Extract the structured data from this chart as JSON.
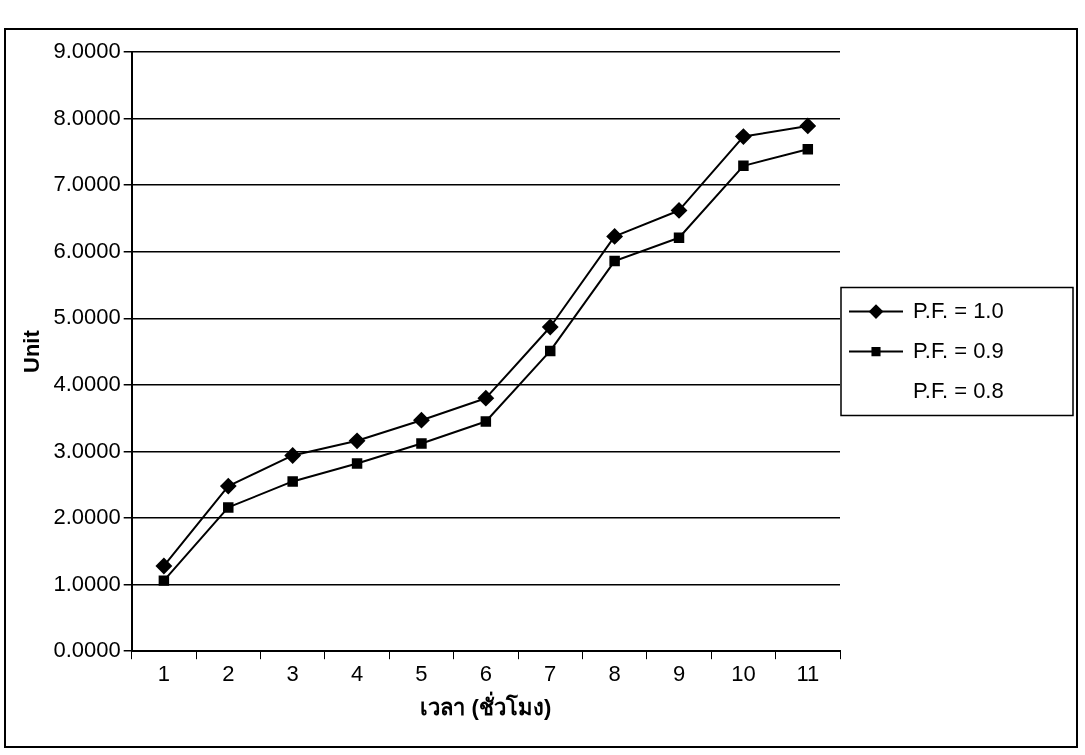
{
  "chart_data": {
    "type": "line",
    "xlabel": "เวลา (ชั่วโมง)",
    "ylabel": "Unit",
    "categories": [
      "1",
      "2",
      "3",
      "4",
      "5",
      "6",
      "7",
      "8",
      "9",
      "10",
      "11"
    ],
    "series": [
      {
        "name": "P.F. = 1.0",
        "color": "#000000",
        "marker": "diamond",
        "values": [
          1.28,
          2.48,
          2.94,
          3.16,
          3.47,
          3.8,
          4.87,
          6.23,
          6.62,
          7.73,
          7.89
        ]
      },
      {
        "name": "P.F. = 0.9",
        "color": "#000000",
        "marker": "square",
        "values": [
          1.06,
          2.16,
          2.55,
          2.82,
          3.12,
          3.45,
          4.51,
          5.86,
          6.21,
          7.29,
          7.54
        ]
      },
      {
        "name": "P.F. = 0.8",
        "marker": "none",
        "values": [
          null,
          null,
          null,
          null,
          null,
          null,
          null,
          null,
          null,
          null,
          null
        ]
      }
    ],
    "ylim": [
      0,
      9
    ],
    "yticks": [
      {
        "value": 0,
        "label": "0.0000"
      },
      {
        "value": 1,
        "label": "1.0000"
      },
      {
        "value": 2,
        "label": "2.0000"
      },
      {
        "value": 3,
        "label": "3.0000"
      },
      {
        "value": 4,
        "label": "4.0000"
      },
      {
        "value": 5,
        "label": "5.0000"
      },
      {
        "value": 6,
        "label": "6.0000"
      },
      {
        "value": 7,
        "label": "7.0000"
      },
      {
        "value": 8,
        "label": "8.0000"
      },
      {
        "value": 9,
        "label": "9.0000"
      }
    ],
    "grid": "y",
    "legend": "right",
    "line_style": "solid"
  }
}
